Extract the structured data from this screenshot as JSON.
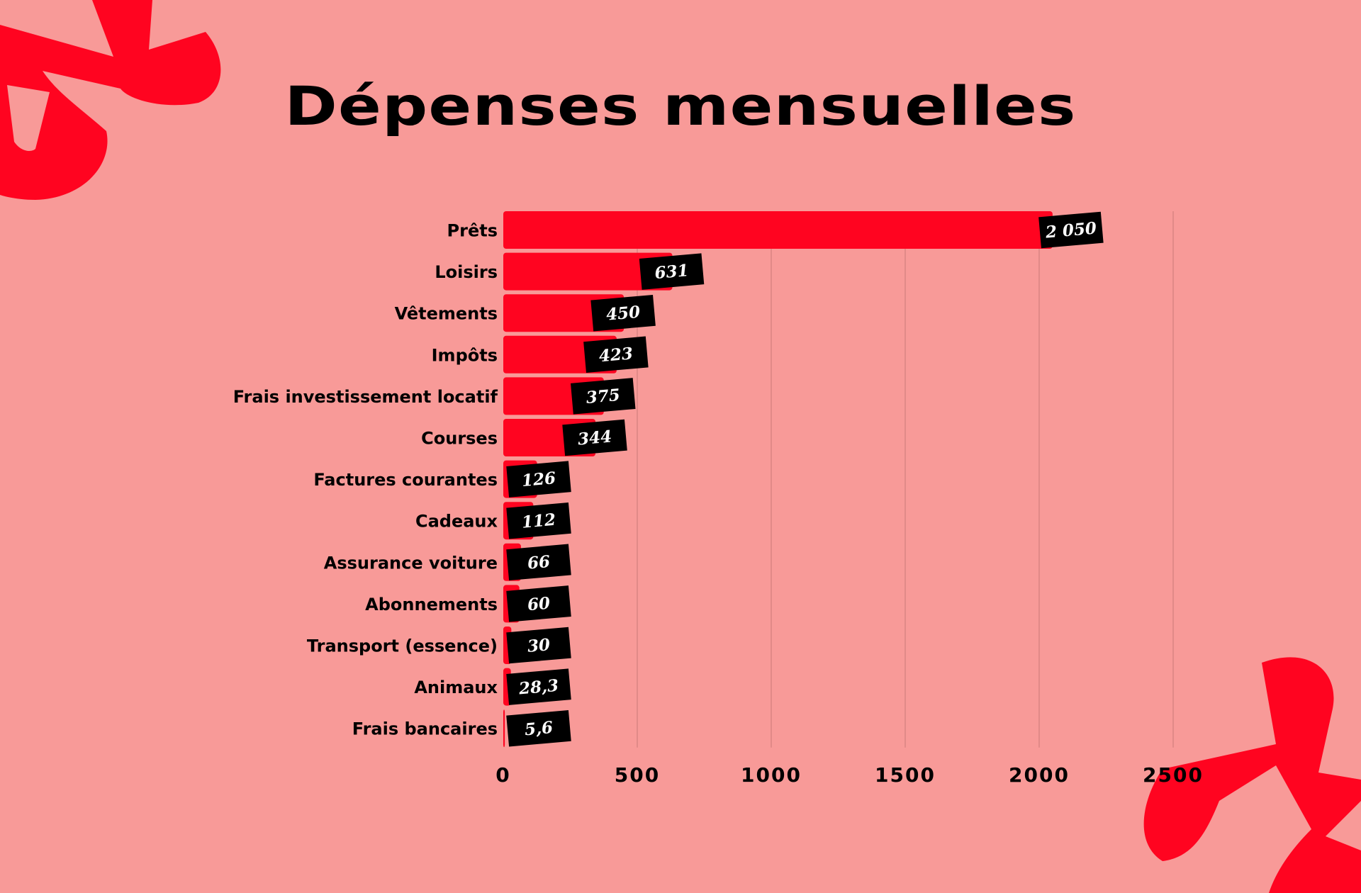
{
  "colors": {
    "background": "#F89A98",
    "bar": "#FF0420",
    "label_box": "#000000",
    "label_text": "#FFFFFF",
    "decoration": "#FF0420"
  },
  "chart_data": {
    "type": "bar",
    "orientation": "horizontal",
    "title": "Dépenses mensuelles",
    "categories": [
      "Prêts",
      "Loisirs",
      "Vêtements",
      "Impôts",
      "Frais investissement locatif",
      "Courses",
      "Factures courantes",
      "Cadeaux",
      "Assurance voiture",
      "Abonnements",
      "Transport (essence)",
      "Animaux",
      "Frais bancaires"
    ],
    "values": [
      2050,
      631,
      450,
      423,
      375,
      344,
      126,
      112,
      66,
      60,
      30,
      28.3,
      5.6
    ],
    "data_labels": [
      "2 050",
      "631",
      "450",
      "423",
      "375",
      "344",
      "126",
      "112",
      "66",
      "60",
      "30",
      "28,3",
      "5,6"
    ],
    "xlim": [
      0,
      2500
    ],
    "x_ticks": [
      0,
      500,
      1000,
      1500,
      2000,
      2500
    ],
    "x_tick_labels": [
      "0",
      "500",
      "1000",
      "1500",
      "2000",
      "2500"
    ],
    "grid": "vertical",
    "xlabel": "",
    "ylabel": ""
  }
}
